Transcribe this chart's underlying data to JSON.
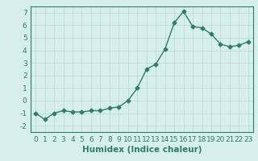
{
  "x": [
    0,
    1,
    2,
    3,
    4,
    5,
    6,
    7,
    8,
    9,
    10,
    11,
    12,
    13,
    14,
    15,
    16,
    17,
    18,
    19,
    20,
    21,
    22,
    23
  ],
  "y": [
    -1.0,
    -1.5,
    -1.0,
    -0.8,
    -0.9,
    -0.9,
    -0.8,
    -0.8,
    -0.6,
    -0.5,
    0.0,
    1.0,
    2.5,
    2.9,
    4.1,
    6.2,
    7.1,
    5.9,
    5.8,
    5.3,
    4.5,
    4.3,
    4.4,
    4.7
  ],
  "line_color": "#2e7d6e",
  "marker": "D",
  "marker_size": 2.5,
  "bg_color": "#d6eeec",
  "grid_color": "#b8d8d4",
  "xlabel": "Humidex (Indice chaleur)",
  "xlim": [
    -0.5,
    23.5
  ],
  "ylim": [
    -2.5,
    7.5
  ],
  "yticks": [
    -2,
    -1,
    0,
    1,
    2,
    3,
    4,
    5,
    6,
    7
  ],
  "xticks": [
    0,
    1,
    2,
    3,
    4,
    5,
    6,
    7,
    8,
    9,
    10,
    11,
    12,
    13,
    14,
    15,
    16,
    17,
    18,
    19,
    20,
    21,
    22,
    23
  ],
  "font_size": 6.5,
  "label_font_size": 7.5,
  "line_width": 1.0
}
